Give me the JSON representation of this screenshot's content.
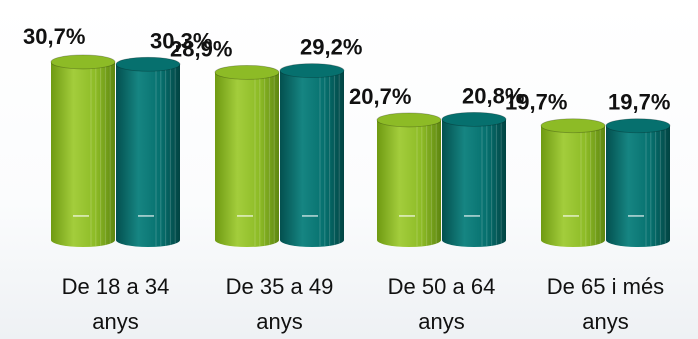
{
  "chart_data": {
    "type": "bar",
    "title": "",
    "xlabel": "",
    "ylabel": "",
    "ylim": [
      0,
      35
    ],
    "categories": [
      [
        "De 18 a 34",
        "anys"
      ],
      [
        "De 35 a 49",
        "anys"
      ],
      [
        "De 50 a 64",
        "anys"
      ],
      [
        "De 65 i més",
        "anys"
      ]
    ],
    "series": [
      {
        "color": "#8dbb26",
        "values": [
          30.7,
          28.9,
          20.7,
          19.7
        ],
        "labels": [
          "30,7%",
          "28,9%",
          "20,7%",
          "19,7%"
        ]
      },
      {
        "color": "#06706e",
        "values": [
          30.3,
          29.2,
          20.8,
          19.7
        ],
        "labels": [
          "30,3%",
          "29,2%",
          "20,8%",
          "19,7%"
        ]
      }
    ],
    "bar_marker": "—",
    "legend": "none",
    "grid": false
  }
}
